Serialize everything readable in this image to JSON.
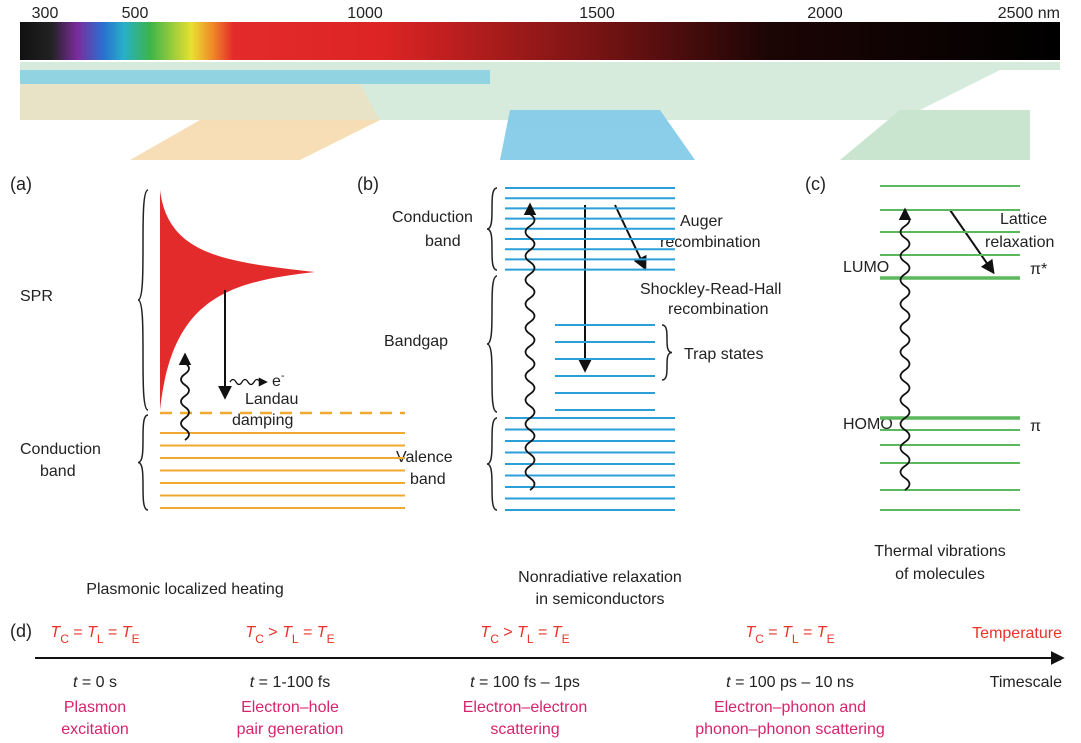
{
  "spectrum": {
    "ticks": [
      "300",
      "500",
      "1000",
      "1500",
      "2000",
      "2500 nm"
    ]
  },
  "panel_a": {
    "label": "(a)",
    "spr": "SPR",
    "conduction_band": [
      "Conduction",
      "band"
    ],
    "electron": {
      "symbol": "e",
      "sup": "-"
    },
    "landau_damping": [
      "Landau",
      "damping"
    ],
    "caption": "Plasmonic localized heating"
  },
  "panel_b": {
    "label": "(b)",
    "conduction_band": [
      "Conduction",
      "band"
    ],
    "auger": [
      "Auger",
      "recombination"
    ],
    "srh": [
      "Shockley-Read-Hall",
      "recombination"
    ],
    "bandgap": "Bandgap",
    "trap_states": "Trap states",
    "valence_band": [
      "Valence",
      "band"
    ],
    "caption": [
      "Nonradiative relaxation",
      "in semiconductors"
    ]
  },
  "panel_c": {
    "label": "(c)",
    "lattice": [
      "Lattice",
      "relaxation"
    ],
    "lumo": "LUMO",
    "pi_star": "π*",
    "homo": "HOMO",
    "pi": "π",
    "caption": [
      "Thermal vibrations",
      "of molecules"
    ]
  },
  "panel_d": {
    "label": "(d)",
    "temperature": "Temperature",
    "timescale": "Timescale",
    "stages": [
      {
        "temperature": [
          {
            "text": "T",
            "sub": "C"
          },
          {
            "text": " = "
          },
          {
            "text": "T",
            "sub": "L"
          },
          {
            "text": " = "
          },
          {
            "text": "T",
            "sub": "E"
          }
        ],
        "time": {
          "var": "t",
          "text": " = 0 s"
        },
        "process": [
          "Plasmon",
          "excitation"
        ]
      },
      {
        "temperature": [
          {
            "text": "T",
            "sub": "C"
          },
          {
            "text": " > "
          },
          {
            "text": "T",
            "sub": "L"
          },
          {
            "text": " = "
          },
          {
            "text": "T",
            "sub": "E"
          }
        ],
        "time": {
          "var": "t",
          "text": " = 1-100 fs"
        },
        "process": [
          "Electron–hole",
          "pair generation"
        ]
      },
      {
        "temperature": [
          {
            "text": "T",
            "sub": "C"
          },
          {
            "text": " > "
          },
          {
            "text": "T",
            "sub": "L"
          },
          {
            "text": " = "
          },
          {
            "text": "T",
            "sub": "E"
          }
        ],
        "time": {
          "var": "t",
          "text": " = 100 fs – 1ps"
        },
        "process": [
          "Electron–electron",
          "scattering"
        ]
      },
      {
        "temperature": [
          {
            "text": "T",
            "sub": "C"
          },
          {
            "text": " = "
          },
          {
            "text": "T",
            "sub": "L"
          },
          {
            "text": " = "
          },
          {
            "text": "T",
            "sub": "E"
          }
        ],
        "time": {
          "var": "t",
          "text": " = 100 ps – 10 ns"
        },
        "process": [
          "Electron–phonon and",
          "phonon–phonon scattering"
        ]
      }
    ]
  }
}
